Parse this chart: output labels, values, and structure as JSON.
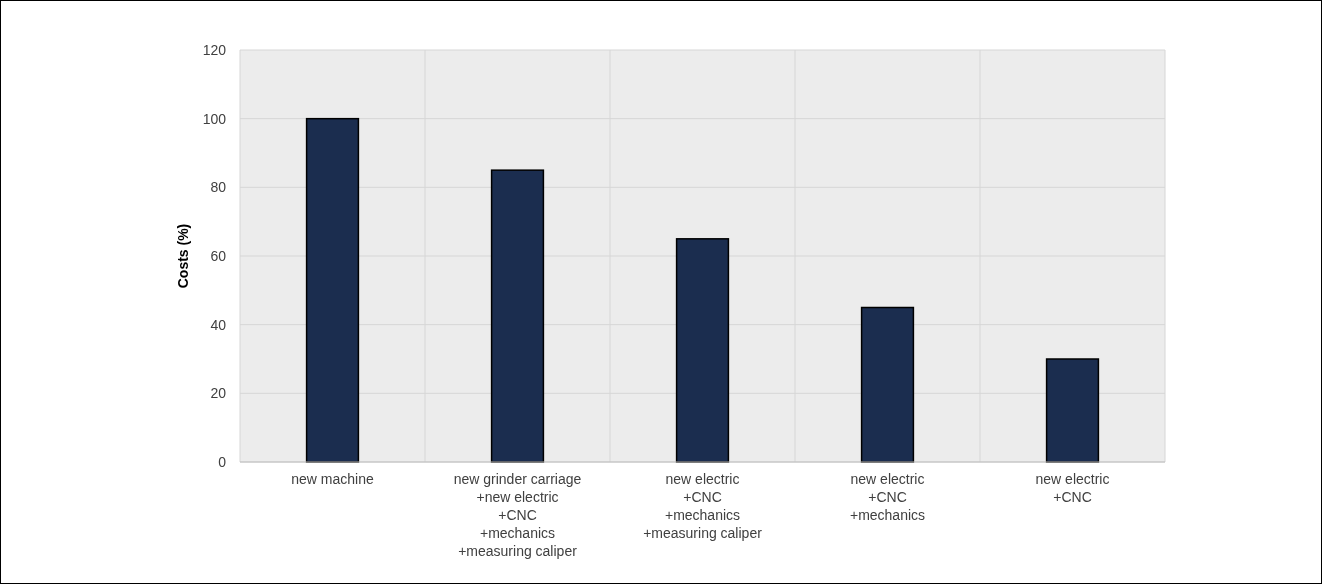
{
  "chart_data": {
    "type": "bar",
    "ylabel": "Costs (%)",
    "categories": [
      "new machine",
      "new grinder carriage\n+new electric\n+CNC\n+mechanics\n+measuring caliper",
      "new electric\n+CNC\n+mechanics\n+measuring caliper",
      "new electric\n+CNC\n+mechanics",
      "new electric\n+CNC"
    ],
    "values": [
      100,
      85,
      65,
      45,
      30
    ],
    "color": "#1b2d4f",
    "ylim": [
      0,
      120
    ],
    "yticks": [
      0,
      20,
      40,
      60,
      80,
      100,
      120
    ],
    "grid": true
  }
}
